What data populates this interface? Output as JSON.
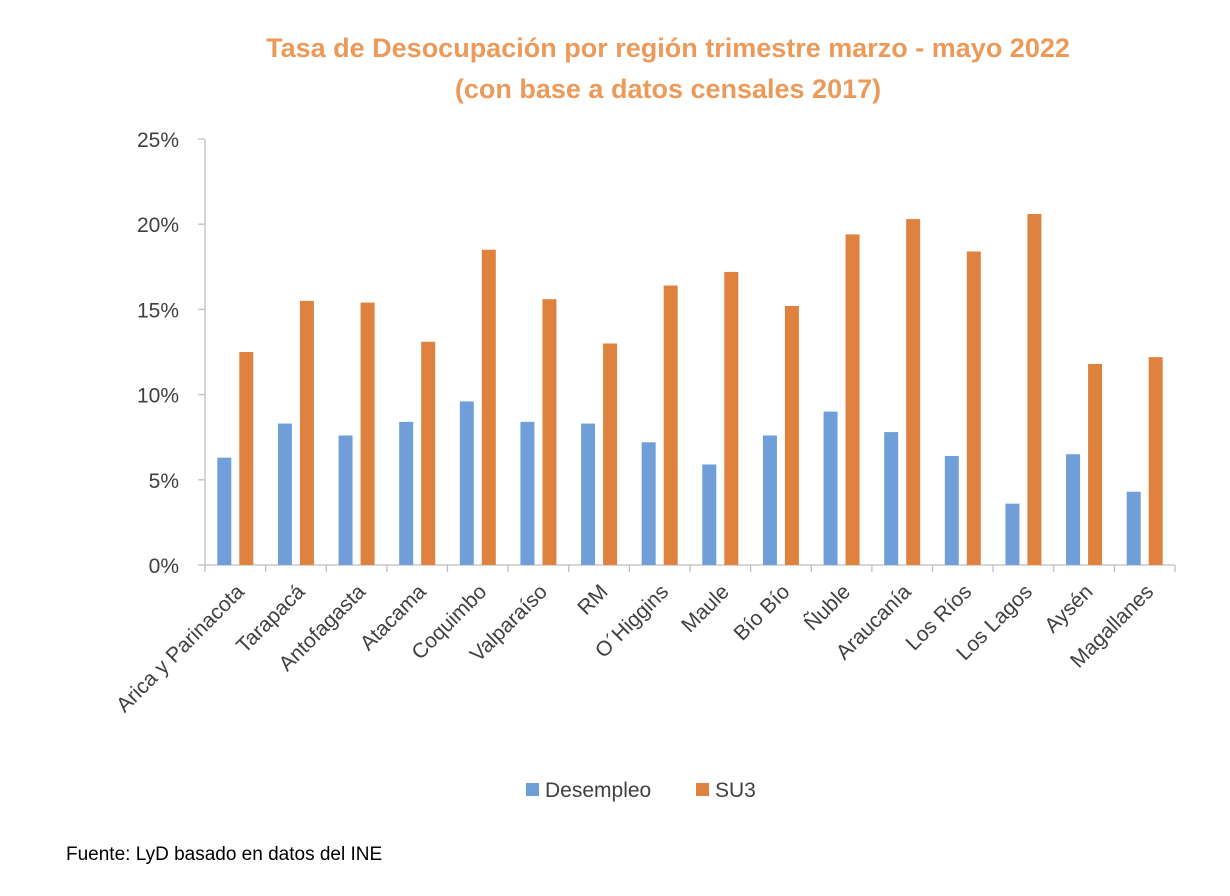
{
  "source_note": "Fuente: LyD basado en datos del INE",
  "colors": {
    "title": "#EB9A5A",
    "series1": "#6F9ED9",
    "series2": "#E0823F",
    "axis": "#BFBFBF",
    "text": "#404040"
  },
  "chart_data": {
    "type": "bar",
    "title_lines": [
      "Tasa de Desocupación por región trimestre marzo - mayo 2022",
      "(con base a datos censales 2017)"
    ],
    "categories": [
      "Arica y Parinacota",
      "Tarapacá",
      "Antofagasta",
      "Atacama",
      "Coquimbo",
      "Valparaíso",
      "RM",
      "O´Higgins",
      "Maule",
      "Bío Bío",
      "Ñuble",
      "Araucanía",
      "Los Ríos",
      "Los Lagos",
      "Aysén",
      "Magallanes"
    ],
    "series": [
      {
        "name": "Desempleo",
        "values": [
          6.3,
          8.3,
          7.6,
          8.4,
          9.6,
          8.4,
          8.3,
          7.2,
          5.9,
          7.6,
          9.0,
          7.8,
          6.4,
          3.6,
          6.5,
          4.3
        ]
      },
      {
        "name": "SU3",
        "values": [
          12.5,
          15.5,
          15.4,
          13.1,
          18.5,
          15.6,
          13.0,
          16.4,
          17.2,
          15.2,
          19.4,
          20.3,
          18.4,
          20.6,
          11.8,
          12.2
        ]
      }
    ],
    "y_ticks": [
      "0%",
      "5%",
      "10%",
      "15%",
      "20%",
      "25%"
    ],
    "ylim": [
      0,
      25
    ],
    "xlabel": "",
    "ylabel": "",
    "grid": false,
    "legend_position": "bottom"
  }
}
